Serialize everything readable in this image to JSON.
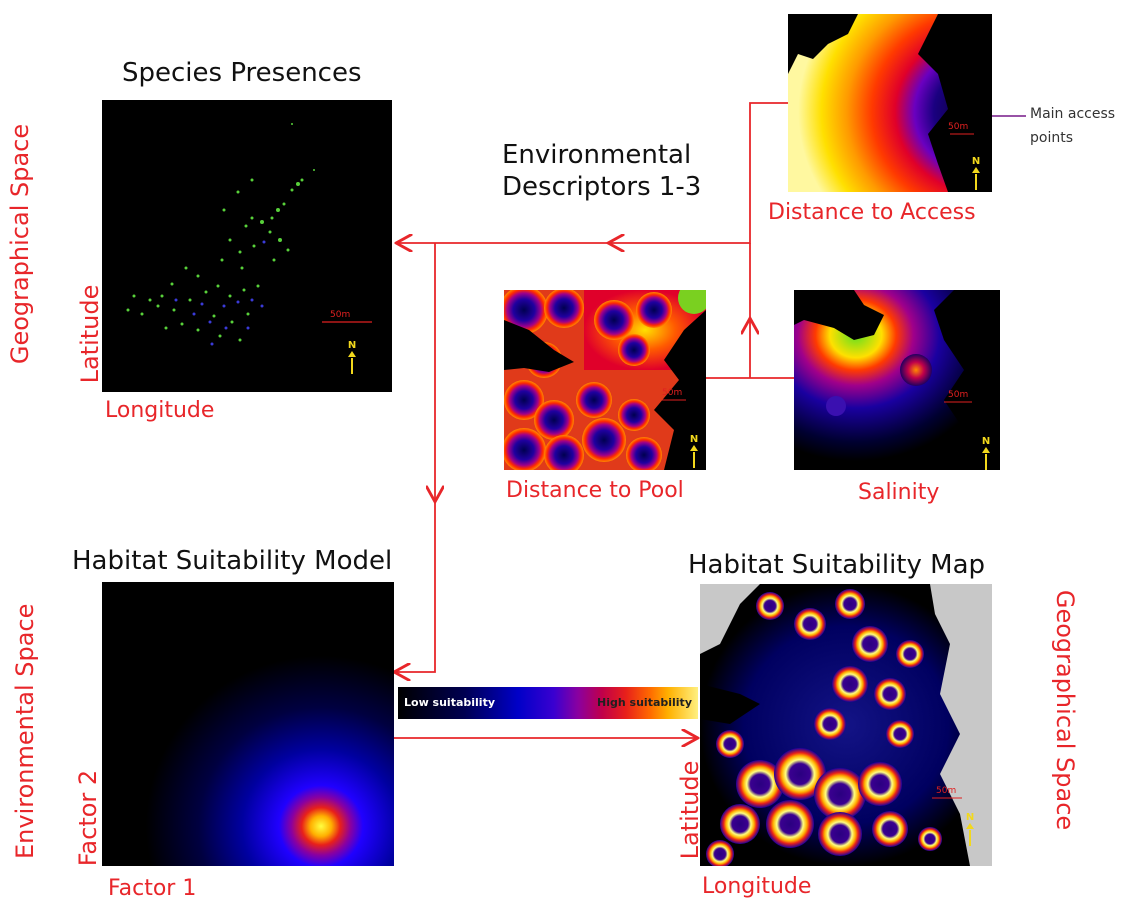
{
  "titles": {
    "species_presences": "Species Presences",
    "environmental_descriptors_line1": "Environmental",
    "environmental_descriptors_line2": "Descriptors 1-3",
    "habitat_model": "Habitat Suitability Model",
    "habitat_map": "Habitat Suitability Map"
  },
  "panel_labels": {
    "distance_to_access": "Distance to Access",
    "distance_to_pool": "Distance to Pool",
    "salinity": "Salinity"
  },
  "axis_labels": {
    "presences_y": "Latitude",
    "presences_x": "Longitude",
    "model_y": "Factor 2",
    "model_x": "Factor 1",
    "map_y": "Latitude",
    "map_x": "Longitude"
  },
  "space_labels": {
    "left_top": "Geographical Space",
    "left_bottom": "Environmental Space",
    "right_bottom": "Geographical Space"
  },
  "annotation": {
    "line1": "Main access",
    "line2": "points"
  },
  "legend": {
    "low": "Low suitability",
    "high": "High suitability"
  },
  "map_marks": {
    "scale": "50m",
    "north": "N"
  },
  "colors": {
    "accent_red": "#e8262a",
    "annotation_purple": "#8a3a9a",
    "panel_bg": "#000000",
    "presence_green": "#58d13a",
    "presence_blue": "#3a3ad8"
  }
}
